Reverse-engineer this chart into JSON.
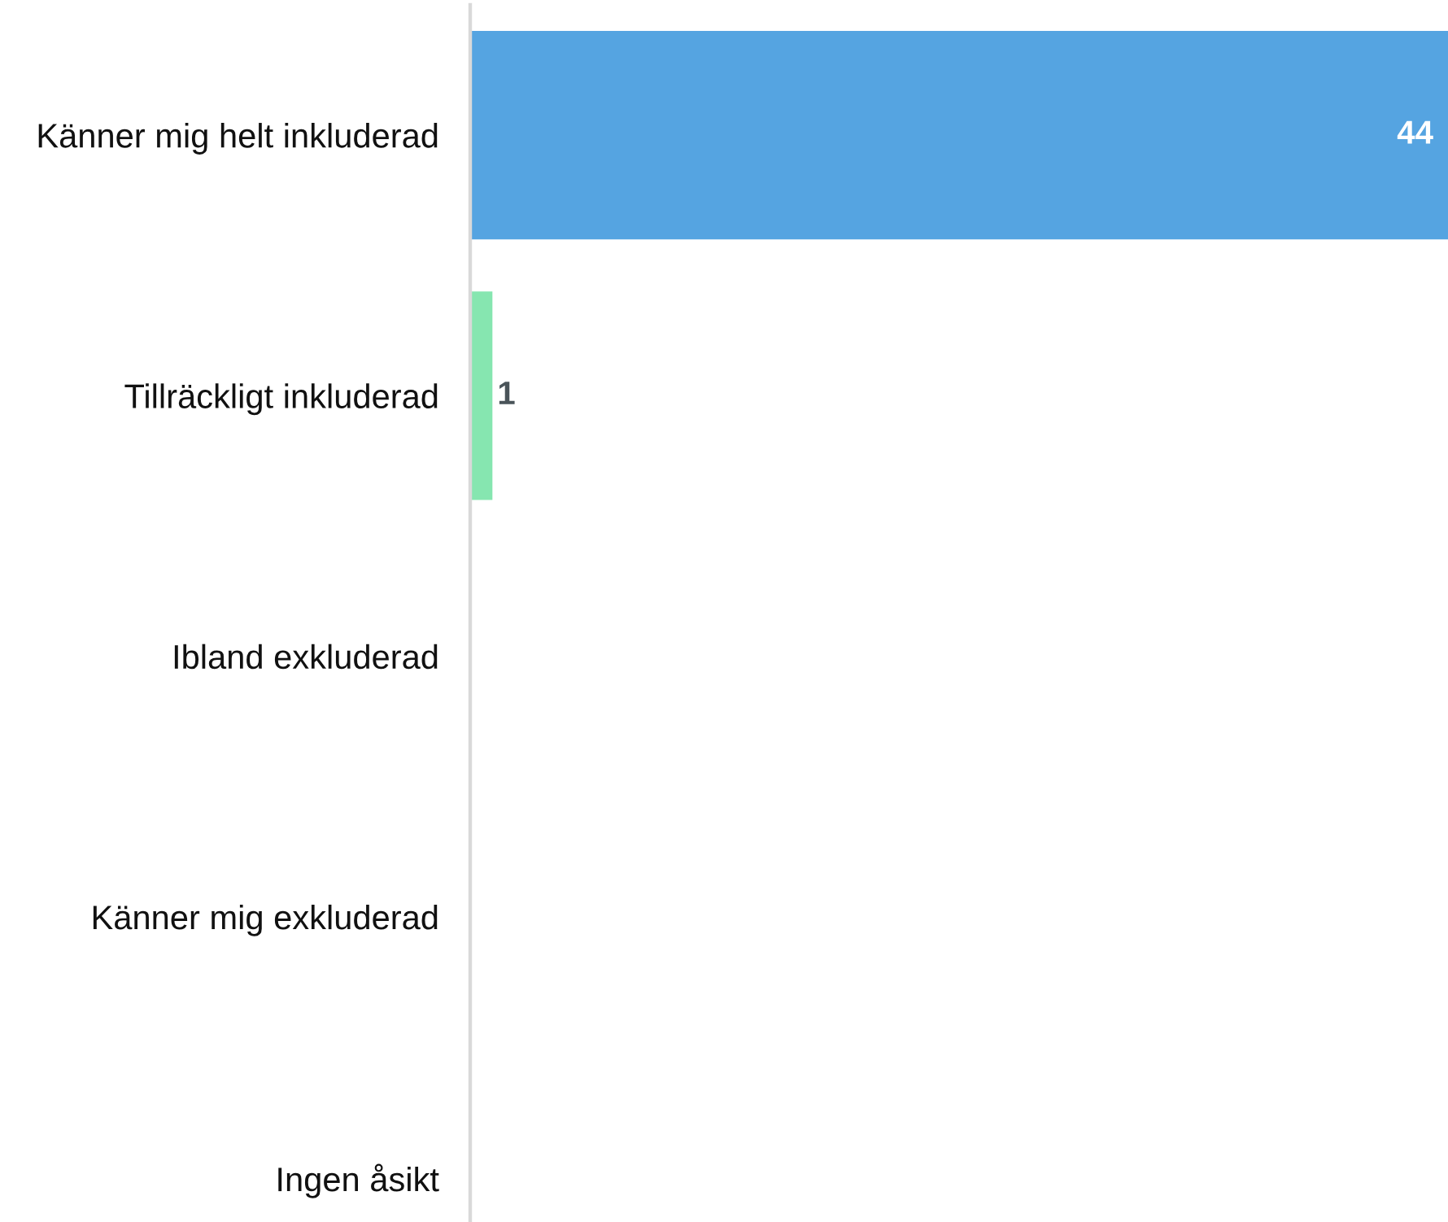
{
  "chart_data": {
    "type": "bar",
    "orientation": "horizontal",
    "categories": [
      "Känner mig helt inkluderad",
      "Tillräckligt inkluderad",
      "Ibland exkluderad",
      "Känner mig exkluderad",
      "Ingen åsikt"
    ],
    "values": [
      44,
      1,
      0,
      0,
      0
    ],
    "value_labels": [
      "44",
      "1",
      null,
      null,
      null
    ],
    "colors": [
      "#55a4e1",
      "#86e6b0",
      "#55a4e1",
      "#86e6b0",
      "#55a4e1"
    ],
    "xlim": [
      0,
      44
    ],
    "tick_labels": "y"
  }
}
